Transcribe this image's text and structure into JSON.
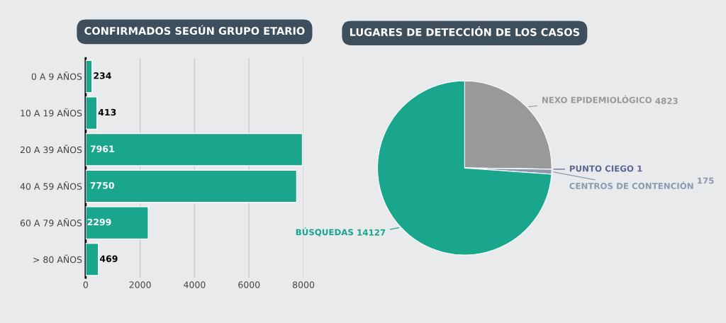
{
  "chart_data": [
    {
      "type": "bar",
      "title": "CONFIRMADOS SEGÚN GRUPO ETARIO",
      "orientation": "horizontal",
      "categories": [
        "0 A 9 AÑOS",
        "10 A 19 AÑOS",
        "20 A 39 AÑOS",
        "40 A 59 AÑOS",
        "60 A 79 AÑOS",
        "> 80 AÑOS"
      ],
      "values": [
        234,
        413,
        7961,
        7750,
        2299,
        469
      ],
      "color": "#1aa68c",
      "xlim": [
        0,
        8000
      ],
      "xticks": [
        0,
        2000,
        4000,
        6000,
        8000
      ],
      "grid": "x",
      "data_labels": true,
      "legend": false
    },
    {
      "type": "pie",
      "title": "LUGARES DE DETECCIÓN DE LOS CASOS",
      "categories": [
        "NEXO EPIDEMIOLÓGICO",
        "PUNTO CIEGO",
        "CENTROS DE CONTENCIÓN",
        "BÚSQUEDAS"
      ],
      "values": [
        4823,
        1,
        175,
        14127
      ],
      "colors": [
        "#999999",
        "#5a6592",
        "#8a9bb0",
        "#1aa68c"
      ],
      "data_labels": true,
      "legend": false
    }
  ]
}
